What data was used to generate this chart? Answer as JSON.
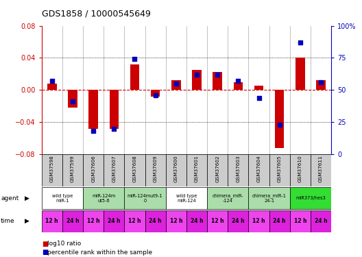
{
  "title": "GDS1858 / 10000545649",
  "samples": [
    "GSM37598",
    "GSM37599",
    "GSM37606",
    "GSM37607",
    "GSM37608",
    "GSM37609",
    "GSM37600",
    "GSM37601",
    "GSM37602",
    "GSM37603",
    "GSM37604",
    "GSM37605",
    "GSM37610",
    "GSM37611"
  ],
  "log10_ratio": [
    0.008,
    -0.022,
    -0.048,
    -0.048,
    0.032,
    -0.008,
    0.012,
    0.025,
    0.022,
    0.01,
    0.005,
    -0.072,
    0.04,
    0.012
  ],
  "percentile_rank": [
    57,
    41,
    18,
    20,
    74,
    46,
    55,
    62,
    62,
    57,
    44,
    23,
    87,
    56
  ],
  "ylim": [
    -0.08,
    0.08
  ],
  "yticks_left": [
    -0.08,
    -0.04,
    0,
    0.04,
    0.08
  ],
  "yticks_right_vals": [
    0,
    25,
    50,
    75,
    100
  ],
  "yticks_right_labels": [
    "0",
    "25",
    "50",
    "75",
    "100%"
  ],
  "agent_groups": [
    {
      "label": "wild type\nmiR-1",
      "start": 0,
      "end": 2,
      "color": "#ffffff"
    },
    {
      "label": "miR-124m\nut5-6",
      "start": 2,
      "end": 4,
      "color": "#aaddaa"
    },
    {
      "label": "miR-124mut9-1\n0",
      "start": 4,
      "end": 6,
      "color": "#aaddaa"
    },
    {
      "label": "wild type\nmiR-124",
      "start": 6,
      "end": 8,
      "color": "#ffffff"
    },
    {
      "label": "chimera_miR-\n-124",
      "start": 8,
      "end": 10,
      "color": "#aaddaa"
    },
    {
      "label": "chimera_miR-1\n24-1",
      "start": 10,
      "end": 12,
      "color": "#aaddaa"
    },
    {
      "label": "miR373/hes3",
      "start": 12,
      "end": 14,
      "color": "#33dd33"
    }
  ],
  "time_labels": [
    "12 h",
    "24 h",
    "12 h",
    "24 h",
    "12 h",
    "24 h",
    "12 h",
    "24 h",
    "12 h",
    "24 h",
    "12 h",
    "24 h",
    "12 h",
    "24 h"
  ],
  "time_color_odd": "#ee44ee",
  "time_color_even": "#dd22dd",
  "bar_color": "#cc0000",
  "dot_color": "#0000bb",
  "dotted_line_color": "#000000",
  "zero_line_color": "#cc0000",
  "vline_color": "#aaaaaa",
  "sample_bg": "#cccccc",
  "left_axis_color": "#cc0000",
  "right_axis_color": "#0000bb"
}
